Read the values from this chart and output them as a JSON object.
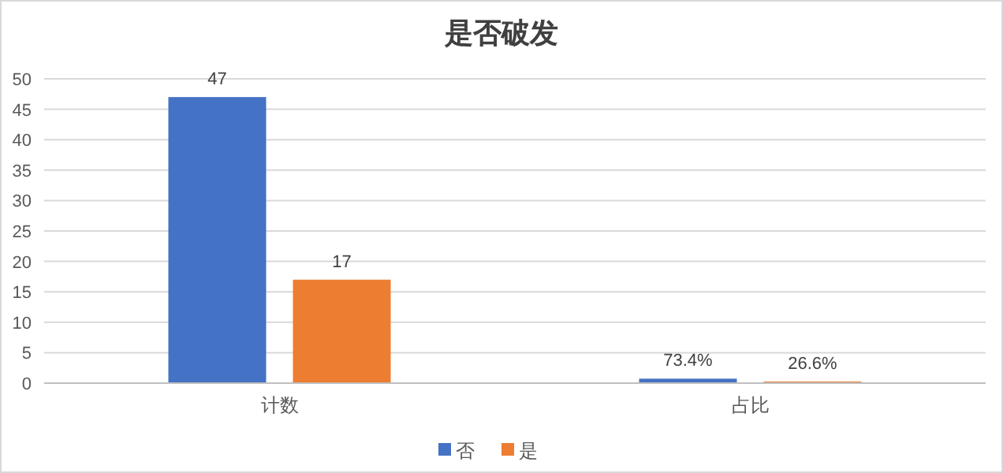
{
  "chart_data": {
    "type": "bar",
    "title": "是否破发",
    "categories": [
      "计数",
      "占比"
    ],
    "series": [
      {
        "name": "否",
        "color": "#4472c4",
        "values": [
          47,
          0.734
        ],
        "value_labels": [
          "47",
          "73.4%"
        ]
      },
      {
        "name": "是",
        "color": "#ed7d31",
        "values": [
          17,
          0.266
        ],
        "value_labels": [
          "17",
          "26.6%"
        ]
      }
    ],
    "ylim": [
      0,
      50
    ],
    "yticks": [
      0,
      5,
      10,
      15,
      20,
      25,
      30,
      35,
      40,
      45,
      50
    ],
    "grid": "y",
    "legend": "bottom"
  }
}
